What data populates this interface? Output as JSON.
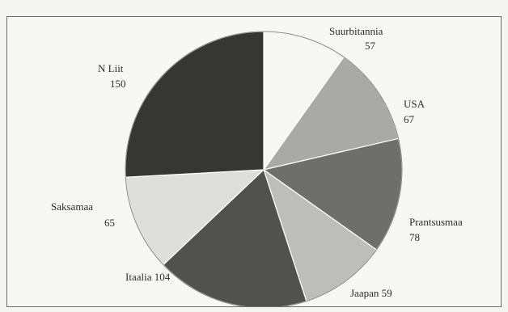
{
  "chart_data": {
    "type": "pie",
    "title": "",
    "slices": [
      {
        "label": "Suurbitannia",
        "value": 57,
        "value_text": "57",
        "color": "#f6f6f4"
      },
      {
        "label": "USA",
        "value": 67,
        "value_text": "67",
        "color": "#a9a9a7"
      },
      {
        "label": "Prantsusmaa",
        "value": 78,
        "value_text": "78",
        "color": "#6e6e6c"
      },
      {
        "label": "Jaapan",
        "value": 59,
        "value_text": "59",
        "color": "#bdbdbb"
      },
      {
        "label": "Itaalia",
        "value": 104,
        "value_text": "104",
        "color": "#515150"
      },
      {
        "label": "Saksamaa",
        "value": 65,
        "value_text": "65",
        "color": "#dededc"
      },
      {
        "label": "N Liit",
        "value": 150,
        "value_text": "150",
        "color": "#363635"
      }
    ],
    "start_angle": "12 o'clock",
    "direction": "clockwise",
    "legend": "none, labels beside slices"
  }
}
